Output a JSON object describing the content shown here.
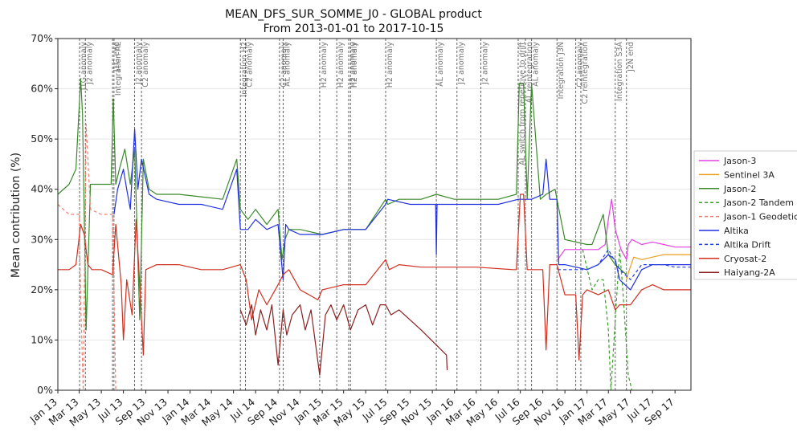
{
  "chart_data": {
    "type": "line",
    "title": "MEAN_DFS_SUR_SOMME_J0 - GLOBAL product",
    "subtitle": "From 2013-01-01 to 2017-10-15",
    "xlabel": "",
    "ylabel": "Mean contribution (%)",
    "x_range": [
      "2013-01-01",
      "2017-10-15"
    ],
    "ylim": [
      0,
      70
    ],
    "y_ticks": [
      "0%",
      "10%",
      "20%",
      "30%",
      "40%",
      "50%",
      "60%",
      "70%"
    ],
    "x_ticks": [
      {
        "date": "2013-01-01",
        "label": "Jan 13"
      },
      {
        "date": "2013-03-01",
        "label": "Mar 13"
      },
      {
        "date": "2013-05-01",
        "label": "May 13"
      },
      {
        "date": "2013-07-01",
        "label": "Jul 13"
      },
      {
        "date": "2013-09-01",
        "label": "Sep 13"
      },
      {
        "date": "2013-11-01",
        "label": "Nov 13"
      },
      {
        "date": "2014-01-01",
        "label": "Jan 14"
      },
      {
        "date": "2014-03-01",
        "label": "Mar 14"
      },
      {
        "date": "2014-05-01",
        "label": "May 14"
      },
      {
        "date": "2014-07-01",
        "label": "Jul 14"
      },
      {
        "date": "2014-09-01",
        "label": "Sep 14"
      },
      {
        "date": "2014-11-01",
        "label": "Nov 14"
      },
      {
        "date": "2015-01-01",
        "label": "Jan 15"
      },
      {
        "date": "2015-03-01",
        "label": "Mar 15"
      },
      {
        "date": "2015-05-01",
        "label": "May 15"
      },
      {
        "date": "2015-07-01",
        "label": "Jul 15"
      },
      {
        "date": "2015-09-01",
        "label": "Sep 15"
      },
      {
        "date": "2015-11-01",
        "label": "Nov 15"
      },
      {
        "date": "2016-01-01",
        "label": "Jan 16"
      },
      {
        "date": "2016-03-01",
        "label": "Mar 16"
      },
      {
        "date": "2016-05-01",
        "label": "May 16"
      },
      {
        "date": "2016-07-01",
        "label": "Jul 16"
      },
      {
        "date": "2016-09-01",
        "label": "Sep 16"
      },
      {
        "date": "2016-11-01",
        "label": "Nov 16"
      },
      {
        "date": "2017-01-01",
        "label": "Jan 17"
      },
      {
        "date": "2017-03-01",
        "label": "Mar 17"
      },
      {
        "date": "2017-05-01",
        "label": "May 17"
      },
      {
        "date": "2017-07-01",
        "label": "Jul 17"
      },
      {
        "date": "2017-09-01",
        "label": "Sep 17"
      }
    ],
    "events": [
      {
        "date": "2013-03-02",
        "label": "J1G anomaly"
      },
      {
        "date": "2013-03-18",
        "label": "J2 anomaly"
      },
      {
        "date": "2013-06-01",
        "label": "J1G end"
      },
      {
        "date": "2013-06-05",
        "label": "Integration AL"
      },
      {
        "date": "2013-08-01",
        "label": "J2 anomaly"
      },
      {
        "date": "2013-08-20",
        "label": "C2 anomaly"
      },
      {
        "date": "2014-05-20",
        "label": "Integration H2"
      },
      {
        "date": "2014-06-03",
        "label": "C2 anomaly"
      },
      {
        "date": "2014-09-05",
        "label": "C2 anomaly"
      },
      {
        "date": "2014-09-15",
        "label": "AL anomaly"
      },
      {
        "date": "2014-12-25",
        "label": "H2 anomaly"
      },
      {
        "date": "2015-02-10",
        "label": "H2 anomaly"
      },
      {
        "date": "2015-03-15",
        "label": "H2 anomaly"
      },
      {
        "date": "2015-03-20",
        "label": "H2 anomaly"
      },
      {
        "date": "2015-06-25",
        "label": "H2 anomaly"
      },
      {
        "date": "2015-11-12",
        "label": "AL anomaly"
      },
      {
        "date": "2016-01-08",
        "label": "J2 anomaly"
      },
      {
        "date": "2016-03-14",
        "label": "J2 anomaly"
      },
      {
        "date": "2016-06-25",
        "label": "AL switch from repetitive to drift"
      },
      {
        "date": "2016-07-15",
        "label": "AL reintegration"
      },
      {
        "date": "2016-08-01",
        "label": "AL anomaly"
      },
      {
        "date": "2016-10-10",
        "label": "Integration J3N"
      },
      {
        "date": "2016-12-01",
        "label": "C2 anomaly"
      },
      {
        "date": "2016-12-15",
        "label": "C2 reintegration"
      },
      {
        "date": "2017-03-20",
        "label": "Integration S3A"
      },
      {
        "date": "2017-04-20",
        "label": "J2N end"
      }
    ],
    "legend": {
      "placement": "right, outside plot"
    },
    "series": [
      {
        "name": "Jason-3",
        "color": "#e040e0",
        "dash": "solid",
        "x": [
          "2016-10-12",
          "2016-11-01",
          "2016-12-01",
          "2017-01-01",
          "2017-02-01",
          "2017-02-20",
          "2017-03-01",
          "2017-03-10",
          "2017-03-20",
          "2017-04-05",
          "2017-04-20",
          "2017-04-25",
          "2017-05-05",
          "2017-06-01",
          "2017-07-01",
          "2017-08-01",
          "2017-09-01",
          "2017-10-15"
        ],
        "y": [
          26,
          28,
          28,
          28,
          28,
          29,
          34,
          38,
          32,
          28,
          26,
          29,
          30,
          29,
          29.5,
          29,
          28.5,
          28.5
        ]
      },
      {
        "name": "Sentinel 3A",
        "color": "#e8a020",
        "dash": "solid",
        "x": [
          "2017-04-20",
          "2017-04-28",
          "2017-05-10",
          "2017-06-01",
          "2017-07-01",
          "2017-08-01",
          "2017-09-01",
          "2017-10-15"
        ],
        "y": [
          22,
          24,
          26.5,
          26,
          26.5,
          27,
          27,
          27
        ]
      },
      {
        "name": "Jason-2",
        "color": "#3a8a2a",
        "dash": "solid",
        "x": [
          "2013-01-01",
          "2013-02-01",
          "2013-02-20",
          "2013-03-05",
          "2013-03-10",
          "2013-03-20",
          "2013-04-01",
          "2013-05-01",
          "2013-05-28",
          "2013-06-03",
          "2013-06-10",
          "2013-06-20",
          "2013-07-05",
          "2013-07-20",
          "2013-08-01",
          "2013-08-15",
          "2013-08-25",
          "2013-09-10",
          "2013-10-01",
          "2013-12-01",
          "2014-02-01",
          "2014-04-01",
          "2014-05-10",
          "2014-05-20",
          "2014-06-10",
          "2014-07-01",
          "2014-08-01",
          "2014-09-01",
          "2014-09-12",
          "2014-09-20",
          "2014-10-01",
          "2014-11-01",
          "2015-01-01",
          "2015-03-01",
          "2015-05-01",
          "2015-06-25",
          "2015-07-01",
          "2015-08-01",
          "2015-10-01",
          "2015-11-12",
          "2016-01-01",
          "2016-03-01",
          "2016-05-01",
          "2016-06-20",
          "2016-06-28",
          "2016-07-10",
          "2016-07-20",
          "2016-08-01",
          "2016-08-25",
          "2016-09-10",
          "2016-10-05",
          "2016-10-10",
          "2016-11-01",
          "2017-01-01",
          "2017-01-15",
          "2017-02-15",
          "2017-03-01",
          "2017-03-20",
          "2017-04-20"
        ],
        "y": [
          39,
          41,
          44,
          62,
          55,
          12,
          41,
          41,
          41,
          58,
          41,
          44,
          48,
          41,
          48,
          14,
          46,
          40,
          39,
          39,
          38.5,
          38,
          46,
          36,
          34,
          36,
          33,
          36,
          26,
          30,
          32,
          32,
          31,
          32,
          32,
          38,
          37,
          38,
          38,
          39,
          38,
          38,
          38,
          39,
          61,
          61,
          38,
          61,
          38,
          39,
          40,
          38,
          30,
          29,
          29,
          35,
          27,
          25,
          23
        ]
      },
      {
        "name": "Jason-2 Tandem",
        "color": "#3aa02a",
        "dash": "dashed",
        "x": [
          "2016-12-20",
          "2017-01-15",
          "2017-02-01",
          "2017-02-15",
          "2017-03-01",
          "2017-03-08",
          "2017-04-01",
          "2017-04-10",
          "2017-04-25",
          "2017-05-05"
        ],
        "y": [
          28,
          20,
          22,
          22,
          12,
          0,
          28,
          20,
          3,
          0
        ]
      },
      {
        "name": "Jason-1 Geodetic",
        "color": "#ee8070",
        "dash": "dashed",
        "x": [
          "2013-01-01",
          "2013-02-01",
          "2013-03-01",
          "2013-03-05",
          "2013-03-12",
          "2013-03-20",
          "2013-04-01",
          "2013-05-01",
          "2013-06-01",
          "2013-06-10",
          "2013-06-15"
        ],
        "y": [
          37,
          35,
          35,
          18,
          0,
          53,
          36,
          35,
          35,
          0,
          0
        ]
      },
      {
        "name": "Altika",
        "color": "#2030e0",
        "dash": "solid",
        "x": [
          "2013-06-05",
          "2013-06-15",
          "2013-07-01",
          "2013-07-10",
          "2013-07-20",
          "2013-08-01",
          "2013-08-10",
          "2013-08-20",
          "2013-09-10",
          "2013-10-01",
          "2013-12-01",
          "2014-02-01",
          "2014-04-01",
          "2014-05-10",
          "2014-05-20",
          "2014-06-10",
          "2014-07-01",
          "2014-08-01",
          "2014-09-01",
          "2014-09-15",
          "2014-09-22",
          "2014-10-01",
          "2014-11-01",
          "2015-01-01",
          "2015-03-01",
          "2015-05-01",
          "2015-06-25",
          "2015-07-01",
          "2015-09-01",
          "2015-11-10",
          "2015-11-12",
          "2015-11-14",
          "2016-01-01",
          "2016-03-01",
          "2016-05-01",
          "2016-06-25",
          "2016-07-05",
          "2016-07-15",
          "2016-08-01",
          "2016-09-01",
          "2016-09-10",
          "2016-09-20",
          "2016-10-10",
          "2016-10-15",
          "2016-11-01",
          "2017-01-01",
          "2017-02-01",
          "2017-03-01",
          "2017-03-20",
          "2017-04-01",
          "2017-05-01",
          "2017-06-01",
          "2017-07-01",
          "2017-08-01",
          "2017-09-01",
          "2017-10-15"
        ],
        "y": [
          35,
          40,
          44,
          40,
          36,
          52,
          40,
          46,
          39,
          38,
          37,
          37,
          36,
          44,
          32,
          32,
          34,
          32,
          33,
          22,
          33,
          32,
          31,
          31,
          32,
          32,
          37,
          38,
          37,
          37,
          27,
          37,
          37,
          37,
          37,
          38,
          38,
          38,
          38,
          39,
          46,
          38,
          38,
          25,
          25,
          24,
          25,
          27,
          26,
          22,
          20,
          24,
          25,
          25,
          25,
          25
        ]
      },
      {
        "name": "Altika Drift",
        "color": "#2040e8",
        "dash": "dashed",
        "x": [
          "2016-10-12",
          "2016-11-01",
          "2016-12-01",
          "2017-01-01",
          "2017-02-01",
          "2017-03-01",
          "2017-04-01",
          "2017-05-01",
          "2017-06-01",
          "2017-07-01",
          "2017-08-01",
          "2017-09-01",
          "2017-10-15"
        ],
        "y": [
          24,
          24,
          24,
          24,
          25,
          28,
          24,
          22,
          25,
          25,
          25,
          24.5,
          24.5
        ]
      },
      {
        "name": "Cryosat-2",
        "color": "#d03020",
        "dash": "solid",
        "x": [
          "2013-01-01",
          "2013-02-01",
          "2013-02-20",
          "2013-03-05",
          "2013-03-15",
          "2013-03-25",
          "2013-04-05",
          "2013-05-01",
          "2013-06-01",
          "2013-06-10",
          "2013-06-25",
          "2013-07-01",
          "2013-07-10",
          "2013-07-25",
          "2013-08-05",
          "2013-08-15",
          "2013-08-25",
          "2013-09-01",
          "2013-10-01",
          "2013-12-01",
          "2014-02-01",
          "2014-04-01",
          "2014-05-20",
          "2014-06-05",
          "2014-06-20",
          "2014-07-10",
          "2014-08-01",
          "2014-09-01",
          "2014-09-15",
          "2014-10-01",
          "2014-11-01",
          "2014-12-20",
          "2015-01-01",
          "2015-03-01",
          "2015-05-01",
          "2015-06-25",
          "2015-07-05",
          "2015-08-01",
          "2015-10-01",
          "2016-01-01",
          "2016-03-01",
          "2016-06-10",
          "2016-06-20",
          "2016-07-01",
          "2016-07-10",
          "2016-07-20",
          "2016-08-01",
          "2016-09-01",
          "2016-09-10",
          "2016-09-20",
          "2016-10-10",
          "2016-11-01",
          "2016-12-01",
          "2016-12-10",
          "2016-12-20",
          "2017-01-01",
          "2017-02-01",
          "2017-03-01",
          "2017-03-20",
          "2017-04-01",
          "2017-05-01",
          "2017-06-01",
          "2017-07-01",
          "2017-08-01",
          "2017-09-01",
          "2017-10-15"
        ],
        "y": [
          24,
          24,
          25,
          33,
          31,
          25,
          24,
          24,
          23,
          33,
          21,
          10,
          22,
          15,
          34,
          21,
          7,
          24,
          25,
          25,
          24,
          24,
          25,
          22,
          14,
          20,
          17,
          21,
          23,
          24,
          20,
          18,
          20,
          21,
          21,
          26,
          24,
          25,
          24.5,
          24.5,
          24.5,
          24,
          24,
          39,
          39,
          24,
          24,
          24,
          8,
          25,
          25,
          19,
          19,
          6,
          19,
          20,
          19,
          20,
          16,
          17,
          17,
          20,
          21,
          20,
          20,
          20
        ]
      },
      {
        "name": "Haiyang-2A",
        "color": "#8a2020",
        "dash": "solid",
        "x": [
          "2014-05-20",
          "2014-06-05",
          "2014-06-20",
          "2014-07-01",
          "2014-07-15",
          "2014-08-01",
          "2014-08-15",
          "2014-09-01",
          "2014-09-15",
          "2014-09-25",
          "2014-10-10",
          "2014-11-01",
          "2014-11-15",
          "2014-12-01",
          "2014-12-25",
          "2015-01-10",
          "2015-01-25",
          "2015-02-10",
          "2015-03-01",
          "2015-03-20",
          "2015-04-10",
          "2015-05-01",
          "2015-05-20",
          "2015-06-10",
          "2015-06-25",
          "2015-07-10",
          "2015-08-01",
          "2015-10-01",
          "2015-12-10",
          "2015-12-12"
        ],
        "y": [
          16,
          13,
          17,
          11,
          16,
          12,
          17,
          5,
          16,
          11,
          15,
          17,
          12,
          16,
          3,
          15,
          17,
          14,
          17,
          12,
          16,
          17,
          13,
          17,
          17,
          15,
          16,
          12,
          7,
          4
        ]
      }
    ]
  }
}
